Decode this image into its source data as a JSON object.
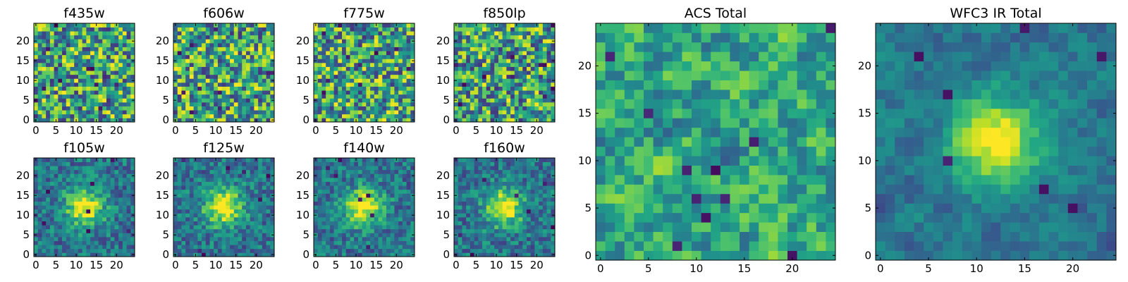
{
  "chart_data": [
    {
      "type": "heatmap",
      "title": "f435w",
      "xticks": [
        "0",
        "5",
        "10",
        "15",
        "20"
      ],
      "yticks": [
        "0",
        "5",
        "10",
        "15",
        "20"
      ],
      "xlim": [
        0,
        24
      ],
      "ylim": [
        0,
        24
      ],
      "grid_size": [
        25,
        25
      ],
      "colormap": "viridis",
      "pattern": "noise",
      "seed": 11
    },
    {
      "type": "heatmap",
      "title": "f606w",
      "xticks": [
        "0",
        "5",
        "10",
        "15",
        "20"
      ],
      "yticks": [
        "0",
        "5",
        "10",
        "15",
        "20"
      ],
      "xlim": [
        0,
        24
      ],
      "ylim": [
        0,
        24
      ],
      "grid_size": [
        25,
        25
      ],
      "colormap": "viridis",
      "pattern": "noise",
      "seed": 23
    },
    {
      "type": "heatmap",
      "title": "f775w",
      "xticks": [
        "0",
        "5",
        "10",
        "15",
        "20"
      ],
      "yticks": [
        "0",
        "5",
        "10",
        "15",
        "20"
      ],
      "xlim": [
        0,
        24
      ],
      "ylim": [
        0,
        24
      ],
      "grid_size": [
        25,
        25
      ],
      "colormap": "viridis",
      "pattern": "noise",
      "seed": 37
    },
    {
      "type": "heatmap",
      "title": "f850lp",
      "xticks": [
        "0",
        "5",
        "10",
        "15",
        "20"
      ],
      "yticks": [
        "0",
        "5",
        "10",
        "15",
        "20"
      ],
      "xlim": [
        0,
        24
      ],
      "ylim": [
        0,
        24
      ],
      "grid_size": [
        25,
        25
      ],
      "colormap": "viridis",
      "pattern": "noise",
      "seed": 41
    },
    {
      "type": "heatmap",
      "title": "f105w",
      "xticks": [
        "0",
        "5",
        "10",
        "15",
        "20"
      ],
      "yticks": [
        "0",
        "5",
        "10",
        "15",
        "20"
      ],
      "xlim": [
        0,
        24
      ],
      "ylim": [
        0,
        24
      ],
      "grid_size": [
        25,
        25
      ],
      "colormap": "viridis",
      "pattern": "source",
      "seed": 53
    },
    {
      "type": "heatmap",
      "title": "f125w",
      "xticks": [
        "0",
        "5",
        "10",
        "15",
        "20"
      ],
      "yticks": [
        "0",
        "5",
        "10",
        "15",
        "20"
      ],
      "xlim": [
        0,
        24
      ],
      "ylim": [
        0,
        24
      ],
      "grid_size": [
        25,
        25
      ],
      "colormap": "viridis",
      "pattern": "source",
      "seed": 67
    },
    {
      "type": "heatmap",
      "title": "f140w",
      "xticks": [
        "0",
        "5",
        "10",
        "15",
        "20"
      ],
      "yticks": [
        "0",
        "5",
        "10",
        "15",
        "20"
      ],
      "xlim": [
        0,
        24
      ],
      "ylim": [
        0,
        24
      ],
      "grid_size": [
        25,
        25
      ],
      "colormap": "viridis",
      "pattern": "source",
      "seed": 79
    },
    {
      "type": "heatmap",
      "title": "f160w",
      "xticks": [
        "0",
        "5",
        "10",
        "15",
        "20"
      ],
      "yticks": [
        "0",
        "5",
        "10",
        "15",
        "20"
      ],
      "xlim": [
        0,
        24
      ],
      "ylim": [
        0,
        24
      ],
      "grid_size": [
        25,
        25
      ],
      "colormap": "viridis",
      "pattern": "source",
      "seed": 83
    },
    {
      "type": "heatmap",
      "title": "ACS Total",
      "xticks": [
        "0",
        "5",
        "10",
        "15",
        "20"
      ],
      "yticks": [
        "0",
        "5",
        "10",
        "15",
        "20"
      ],
      "xlim": [
        0,
        24
      ],
      "ylim": [
        0,
        24
      ],
      "grid_size": [
        25,
        25
      ],
      "colormap": "viridis",
      "pattern": "noise-smooth",
      "seed": 97
    },
    {
      "type": "heatmap",
      "title": "WFC3 IR Total",
      "xticks": [
        "0",
        "5",
        "10",
        "15",
        "20"
      ],
      "yticks": [
        "0",
        "5",
        "10",
        "15",
        "20"
      ],
      "xlim": [
        0,
        24
      ],
      "ylim": [
        0,
        24
      ],
      "grid_size": [
        25,
        25
      ],
      "colormap": "viridis",
      "pattern": "source-smooth",
      "seed": 101
    }
  ]
}
